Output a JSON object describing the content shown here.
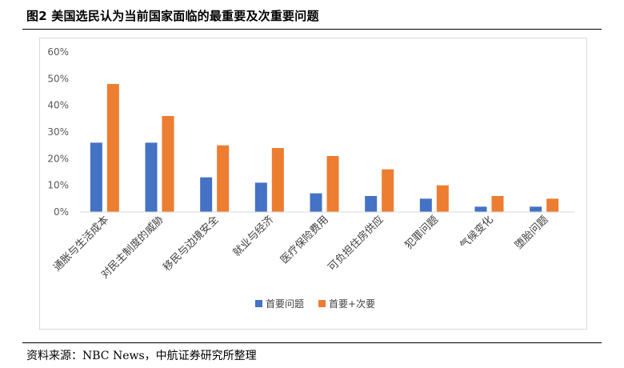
{
  "figure": {
    "title": "图2  美国选民认为当前国家面临的最重要及次重要问题",
    "source": "资料来源：NBC News，中航证券研究所整理"
  },
  "colors": {
    "primary": "#4472C4",
    "secondary": "#ED7D31",
    "axis": "#D9D9D9"
  },
  "chart_data": {
    "type": "bar",
    "categories": [
      "通胀与生活成本",
      "对民主制度的威胁",
      "移民与边境安全",
      "就业与经济",
      "医疗保险费用",
      "可负担住房供应",
      "犯罪问题",
      "气候变化",
      "堕胎问题"
    ],
    "series": [
      {
        "name": "首要问题",
        "values": [
          26,
          26,
          13,
          11,
          7,
          6,
          5,
          2,
          2
        ]
      },
      {
        "name": "首要+次要",
        "values": [
          48,
          36,
          25,
          24,
          21,
          16,
          10,
          6,
          5
        ]
      }
    ],
    "ylim": [
      0,
      60
    ],
    "yticks": [
      "0%",
      "10%",
      "20%",
      "30%",
      "40%",
      "50%",
      "60%"
    ],
    "grid": false,
    "legend": "bottom"
  }
}
